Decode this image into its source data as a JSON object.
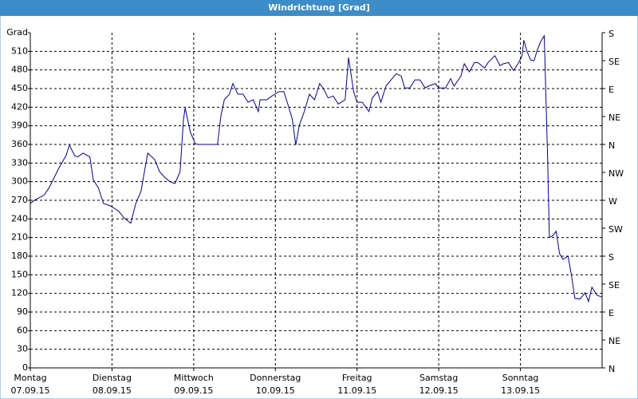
{
  "chart_data": {
    "type": "line",
    "title": "Windrichtung [Grad]",
    "x": [
      0,
      1.5,
      4,
      5.5,
      8.5,
      10.5,
      11.5,
      13,
      14,
      15.5,
      17.5,
      18.5,
      20,
      21.5,
      23.5,
      25,
      26,
      27.5,
      29.5,
      31,
      32.5,
      34.5,
      36.5,
      38,
      39.5,
      41,
      42.5,
      44,
      45,
      45.5,
      47,
      48.5,
      49.5,
      52,
      55,
      56,
      57,
      58.5,
      59.5,
      61,
      62.5,
      64,
      65.5,
      67,
      67.5,
      69.5,
      71,
      73,
      74.5,
      76,
      77,
      78,
      79,
      80.5,
      82,
      83.5,
      85,
      86,
      87.5,
      89,
      90.5,
      92.5,
      93.5,
      95,
      96,
      97.5,
      99.5,
      100.5,
      102,
      103,
      104.5,
      106,
      107.5,
      109,
      110,
      111.5,
      113,
      114.5,
      116,
      117,
      119,
      120,
      122,
      123.5,
      124.5,
      126.5,
      127.5,
      129,
      130.5,
      131.5,
      133.5,
      134.5,
      136.5,
      138,
      139,
      140.5,
      142,
      143.5,
      144.5,
      145,
      146,
      147,
      148,
      149,
      150,
      151,
      152,
      152.5,
      153.5,
      154.5,
      155.5,
      156.5,
      158,
      159,
      160,
      161.5,
      163,
      164,
      165,
      166.5,
      168
    ],
    "series": [
      {
        "name": "Windrichtung",
        "color": "#00008b",
        "values": [
          265,
          271,
          278,
          290,
          323,
          342,
          359,
          342,
          340,
          346,
          340,
          303,
          290,
          265,
          261,
          256,
          252,
          242,
          233,
          265,
          284,
          346,
          336,
          316,
          307,
          300,
          297,
          316,
          400,
          419,
          380,
          361,
          360,
          360,
          360,
          406,
          432,
          441,
          458,
          441,
          441,
          428,
          432,
          413,
          432,
          432,
          438,
          445,
          445,
          419,
          400,
          359,
          390,
          413,
          441,
          432,
          458,
          451,
          435,
          438,
          425,
          432,
          500,
          445,
          428,
          428,
          413,
          435,
          445,
          428,
          454,
          464,
          474,
          470,
          451,
          451,
          464,
          464,
          451,
          454,
          458,
          451,
          451,
          466,
          454,
          470,
          490,
          477,
          492,
          492,
          483,
          492,
          503,
          487,
          490,
          492,
          479,
          492,
          503,
          528,
          509,
          496,
          495,
          513,
          526,
          535,
          336,
          210,
          213,
          220,
          184,
          175,
          180,
          149,
          112,
          111,
          121,
          107,
          130,
          117,
          114
        ]
      }
    ],
    "xlim": [
      0,
      168
    ],
    "xticks": [
      {
        "value": 0,
        "label": "Montag",
        "date": "07.09.15"
      },
      {
        "value": 24,
        "label": "Dienstag",
        "date": "08.09.15"
      },
      {
        "value": 48,
        "label": "Mittwoch",
        "date": "09.09.15"
      },
      {
        "value": 72,
        "label": "Donnerstag",
        "date": "10.09.15"
      },
      {
        "value": 96,
        "label": "Freitag",
        "date": "11.09.15"
      },
      {
        "value": 120,
        "label": "Samstag",
        "date": "12.09.15"
      },
      {
        "value": 144,
        "label": "Sonntag",
        "date": "13.09.15"
      }
    ],
    "ylim": [
      0,
      540
    ],
    "yticks": [
      0,
      30,
      60,
      90,
      120,
      150,
      180,
      210,
      240,
      270,
      300,
      330,
      360,
      390,
      420,
      450,
      480,
      510,
      {
        "value": 540,
        "label": "Grad"
      }
    ],
    "y2lim": [
      0,
      540
    ],
    "y2ticks": [
      {
        "value": 0,
        "label": "N"
      },
      {
        "value": 45,
        "label": "NE"
      },
      {
        "value": 90,
        "label": "E"
      },
      {
        "value": 135,
        "label": "SE"
      },
      {
        "value": 180,
        "label": "S"
      },
      {
        "value": 225,
        "label": "SW"
      },
      {
        "value": 270,
        "label": "W"
      },
      {
        "value": 315,
        "label": "NW"
      },
      {
        "value": 360,
        "label": "N"
      },
      {
        "value": 405,
        "label": "NE"
      },
      {
        "value": 450,
        "label": "E"
      },
      {
        "value": 495,
        "label": "SE"
      },
      {
        "value": 540,
        "label": "S"
      }
    ],
    "grid": true
  }
}
